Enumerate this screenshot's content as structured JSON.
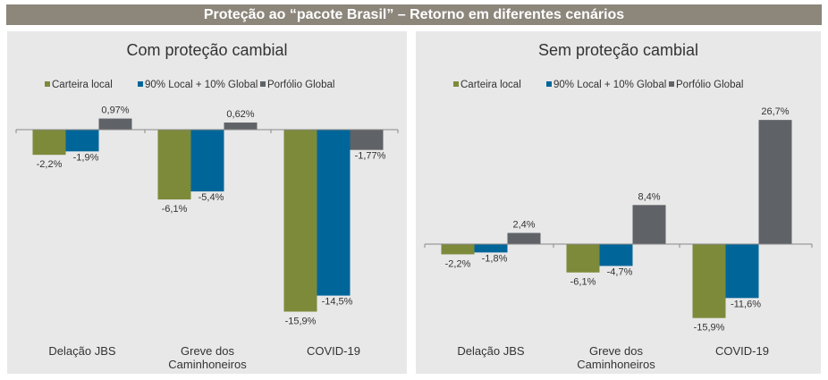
{
  "header": {
    "title": "Proteção ao “pacote Brasil” – Retorno em diferentes cenários"
  },
  "colors": {
    "Carteira local": "#7d8a3a",
    "90% Local + 10% Global": "#00669a",
    "Porfólio Global": "#5f6266"
  },
  "chart_data": [
    {
      "type": "bar",
      "title": "Com proteção cambial",
      "categories": [
        "Delação JBS",
        "Greve dos Caminhoneiros",
        "COVID-19"
      ],
      "category_lines": [
        [
          "Delação JBS"
        ],
        [
          "Greve dos",
          "Caminhoneiros"
        ],
        [
          "COVID-19"
        ]
      ],
      "legend_position": "top",
      "grid": false,
      "series": [
        {
          "name": "Carteira local",
          "values": [
            -2.2,
            -6.1,
            -15.9
          ],
          "labels": [
            "-2,2%",
            "-6,1%",
            "-15,9%"
          ]
        },
        {
          "name": "90% Local + 10% Global",
          "values": [
            -1.9,
            -5.4,
            -14.5
          ],
          "labels": [
            "-1,9%",
            "-5,4%",
            "-14,5%"
          ]
        },
        {
          "name": "Porfólio Global",
          "values": [
            0.97,
            0.62,
            -1.77
          ],
          "labels": [
            "0,97%",
            "0,62%",
            "-1,77%"
          ]
        }
      ]
    },
    {
      "type": "bar",
      "title": "Sem proteção cambial",
      "categories": [
        "Delação JBS",
        "Greve dos Caminhoneiros",
        "COVID-19"
      ],
      "category_lines": [
        [
          "Delação JBS"
        ],
        [
          "Greve dos",
          "Caminhoneiros"
        ],
        [
          "COVID-19"
        ]
      ],
      "legend_position": "top",
      "grid": false,
      "series": [
        {
          "name": "Carteira local",
          "values": [
            -2.2,
            -6.1,
            -15.9
          ],
          "labels": [
            "-2,2%",
            "-6,1%",
            "-15,9%"
          ]
        },
        {
          "name": "90% Local + 10% Global",
          "values": [
            -1.8,
            -4.7,
            -11.6
          ],
          "labels": [
            "-1,8%",
            "-4,7%",
            "-11,6%"
          ]
        },
        {
          "name": "Porfólio Global",
          "values": [
            2.4,
            8.4,
            26.7
          ],
          "labels": [
            "2,4%",
            "8,4%",
            "26,7%"
          ]
        }
      ]
    }
  ]
}
